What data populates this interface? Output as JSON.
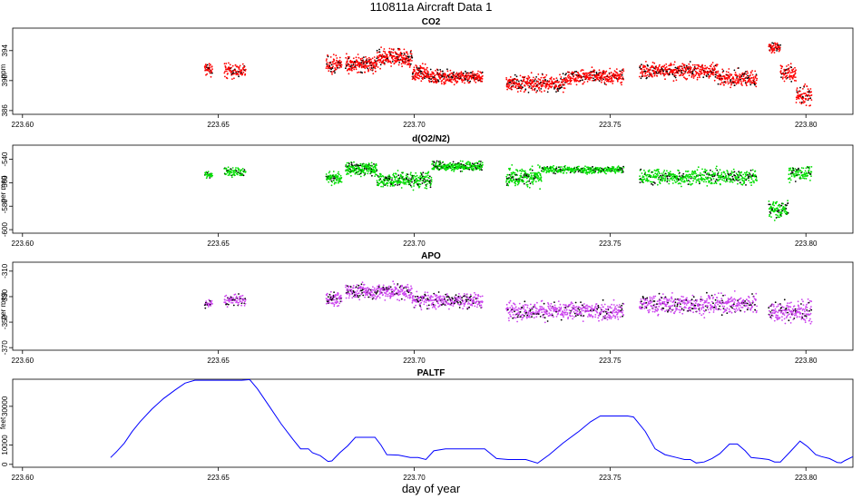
{
  "figure": {
    "title": "110811a   Aircraft Data 1",
    "xlabel": "day of year"
  },
  "chart_data": [
    {
      "type": "scatter",
      "title": "CO2",
      "ylabel": "ppm",
      "xlim": [
        223.5975,
        223.812
      ],
      "ylim": [
        385.5,
        397
      ],
      "xticks": [
        "223.60",
        "223.65",
        "223.70",
        "223.75",
        "223.80"
      ],
      "yticks": [
        386,
        390,
        394
      ],
      "color": "#ff0000",
      "segments": [
        {
          "x0": 223.6465,
          "x1": 223.6485,
          "center": 391.5,
          "spread": 1.2,
          "n": 40
        },
        {
          "x0": 223.6515,
          "x1": 223.657,
          "center": 391.3,
          "spread": 1.3,
          "n": 90
        },
        {
          "x0": 223.6775,
          "x1": 223.6815,
          "center": 392.2,
          "spread": 1.6,
          "n": 80
        },
        {
          "x0": 223.6825,
          "x1": 223.6905,
          "center": 392.2,
          "spread": 1.4,
          "n": 200
        },
        {
          "x0": 223.6905,
          "x1": 223.6995,
          "center": 393.0,
          "spread": 1.5,
          "n": 220
        },
        {
          "x0": 223.6995,
          "x1": 223.7035,
          "center": 391.0,
          "spread": 1.3,
          "n": 100
        },
        {
          "x0": 223.7035,
          "x1": 223.7175,
          "center": 390.5,
          "spread": 1.1,
          "n": 300
        },
        {
          "x0": 223.7235,
          "x1": 223.7385,
          "center": 389.6,
          "spread": 1.4,
          "n": 320
        },
        {
          "x0": 223.7385,
          "x1": 223.7535,
          "center": 390.5,
          "spread": 1.2,
          "n": 300
        },
        {
          "x0": 223.7575,
          "x1": 223.7775,
          "center": 391.3,
          "spread": 1.4,
          "n": 400
        },
        {
          "x0": 223.7775,
          "x1": 223.7875,
          "center": 390.3,
          "spread": 1.4,
          "n": 200
        },
        {
          "x0": 223.7905,
          "x1": 223.7935,
          "center": 394.5,
          "spread": 1.0,
          "n": 60
        },
        {
          "x0": 223.7935,
          "x1": 223.7975,
          "center": 391.0,
          "spread": 1.6,
          "n": 80
        },
        {
          "x0": 223.7975,
          "x1": 223.8015,
          "center": 388.0,
          "spread": 1.8,
          "n": 80
        }
      ]
    },
    {
      "type": "scatter",
      "title": "d(O2/N2)",
      "ylabel": "per meg",
      "xlim": [
        223.5975,
        223.812
      ],
      "ylim": [
        -603,
        -528
      ],
      "xticks": [
        "223.60",
        "223.65",
        "223.70",
        "223.75",
        "223.80"
      ],
      "yticks": [
        -600,
        -580,
        -560,
        -540
      ],
      "color": "#00dd00",
      "segments": [
        {
          "x0": 223.6465,
          "x1": 223.6485,
          "center": -553,
          "spread": 4,
          "n": 30
        },
        {
          "x0": 223.6515,
          "x1": 223.657,
          "center": -551,
          "spread": 5,
          "n": 80
        },
        {
          "x0": 223.6775,
          "x1": 223.6815,
          "center": -556,
          "spread": 6,
          "n": 80
        },
        {
          "x0": 223.6825,
          "x1": 223.6905,
          "center": -548,
          "spread": 7,
          "n": 200
        },
        {
          "x0": 223.6905,
          "x1": 223.7045,
          "center": -558,
          "spread": 9,
          "n": 280
        },
        {
          "x0": 223.7045,
          "x1": 223.7175,
          "center": -546,
          "spread": 5,
          "n": 260
        },
        {
          "x0": 223.7235,
          "x1": 223.7325,
          "center": -555,
          "spread": 10,
          "n": 200
        },
        {
          "x0": 223.7325,
          "x1": 223.7535,
          "center": -549,
          "spread": 4,
          "n": 320
        },
        {
          "x0": 223.7575,
          "x1": 223.7875,
          "center": -555,
          "spread": 9,
          "n": 500
        },
        {
          "x0": 223.7905,
          "x1": 223.7955,
          "center": -583,
          "spread": 10,
          "n": 100
        },
        {
          "x0": 223.7955,
          "x1": 223.8015,
          "center": -552,
          "spread": 8,
          "n": 100
        }
      ]
    },
    {
      "type": "scatter",
      "title": "APO",
      "ylabel": "per meg",
      "xlim": [
        223.5975,
        223.812
      ],
      "ylim": [
        -372,
        -303
      ],
      "xticks": [
        "223.60",
        "223.65",
        "223.70",
        "223.75",
        "223.80"
      ],
      "yticks": [
        -370,
        -350,
        -330,
        -310
      ],
      "color": "#cc44ee",
      "segments": [
        {
          "x0": 223.6465,
          "x1": 223.6485,
          "center": -336,
          "spread": 5,
          "n": 30
        },
        {
          "x0": 223.6515,
          "x1": 223.657,
          "center": -333,
          "spread": 6,
          "n": 80
        },
        {
          "x0": 223.6775,
          "x1": 223.6815,
          "center": -332,
          "spread": 7,
          "n": 80
        },
        {
          "x0": 223.6825,
          "x1": 223.6995,
          "center": -326,
          "spread": 8,
          "n": 320
        },
        {
          "x0": 223.6995,
          "x1": 223.7175,
          "center": -333,
          "spread": 8,
          "n": 320
        },
        {
          "x0": 223.7235,
          "x1": 223.7535,
          "center": -341,
          "spread": 9,
          "n": 500
        },
        {
          "x0": 223.7575,
          "x1": 223.7875,
          "center": -336,
          "spread": 10,
          "n": 500
        },
        {
          "x0": 223.7905,
          "x1": 223.8015,
          "center": -342,
          "spread": 10,
          "n": 200
        }
      ]
    },
    {
      "type": "line",
      "title": "PALTF",
      "ylabel": "feet",
      "xlim": [
        223.5975,
        223.812
      ],
      "ylim": [
        -1500,
        44000
      ],
      "xticks": [
        "223.60",
        "223.65",
        "223.70",
        "223.75",
        "223.80"
      ],
      "yticks": [
        0,
        10000,
        30000
      ],
      "color": "#0000ff",
      "x": [
        223.6225,
        223.624,
        223.626,
        223.628,
        223.63,
        223.633,
        223.636,
        223.639,
        223.6415,
        223.644,
        223.648,
        223.652,
        223.656,
        223.658,
        223.66,
        223.663,
        223.666,
        223.669,
        223.671,
        223.673,
        223.674,
        223.676,
        223.678,
        223.679,
        223.681,
        223.683,
        223.685,
        223.6875,
        223.69,
        223.6915,
        223.693,
        223.696,
        223.699,
        223.701,
        223.703,
        223.705,
        223.708,
        223.712,
        223.716,
        223.718,
        223.721,
        223.724,
        223.7265,
        223.7285,
        223.7315,
        223.7345,
        223.738,
        223.742,
        223.745,
        223.7475,
        223.75,
        223.752,
        223.7545,
        223.756,
        223.757,
        223.759,
        223.7615,
        223.764,
        223.767,
        223.769,
        223.7705,
        223.772,
        223.774,
        223.776,
        223.778,
        223.7805,
        223.7825,
        223.7845,
        223.786,
        223.7885,
        223.7905,
        223.792,
        223.7935,
        223.796,
        223.7985,
        223.8005,
        223.8025,
        223.804,
        223.806,
        223.808,
        223.809,
        223.81,
        223.812
      ],
      "y": [
        3500,
        6500,
        11000,
        17000,
        22000,
        28500,
        34000,
        38500,
        42000,
        43500,
        43500,
        43500,
        43500,
        43800,
        39000,
        30000,
        21000,
        13000,
        8000,
        8000,
        6000,
        4500,
        1500,
        1800,
        6000,
        9500,
        14000,
        14000,
        14000,
        10000,
        5000,
        4800,
        3500,
        3500,
        2500,
        7000,
        8000,
        8000,
        8000,
        8000,
        3000,
        2500,
        2500,
        2500,
        600,
        5000,
        11000,
        17000,
        22000,
        25000,
        25000,
        25000,
        25000,
        24500,
        22000,
        17000,
        8000,
        5000,
        3500,
        2500,
        2500,
        700,
        1200,
        3000,
        5500,
        10500,
        10500,
        7000,
        3500,
        3000,
        2500,
        1200,
        1200,
        6500,
        12000,
        9000,
        5000,
        4000,
        3000,
        1000,
        800,
        2000,
        4000
      ]
    }
  ]
}
